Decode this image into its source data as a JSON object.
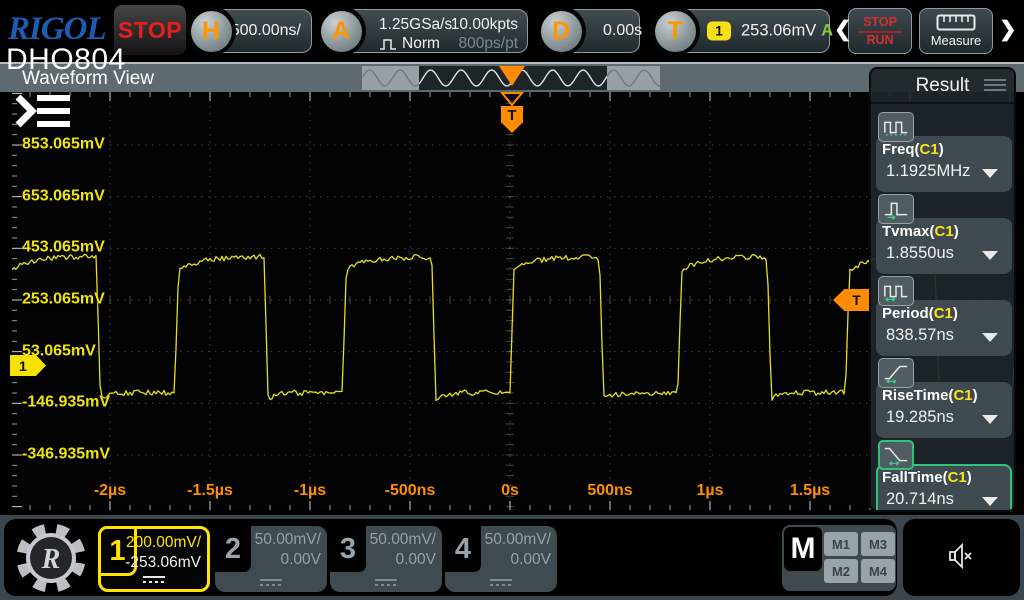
{
  "toolbar": {
    "brand": "RIGOL",
    "model": "DHO804",
    "acq_status": "STOP",
    "horizontal": {
      "key": "H",
      "scale": "500.00ns/"
    },
    "acquire": {
      "key": "A",
      "sample_rate": "1.25GSa/s",
      "mode": "Norm",
      "depth": "10.00kpts",
      "resolution": "800ps/pt"
    },
    "delay": {
      "key": "D",
      "value": "0.00s"
    },
    "trigger": {
      "key": "T",
      "source": "1",
      "level": "253.06mV",
      "state": "A"
    },
    "stop_run": {
      "top": "STOP",
      "bottom": "RUN"
    },
    "measure_label": "Measure",
    "nav_prev": "❮",
    "nav_next": "❯"
  },
  "view": {
    "tab": "Waveform View"
  },
  "plot": {
    "voltage_labels": [
      "853.065mV",
      "653.065mV",
      "453.065mV",
      "253.065mV",
      "53.065mV",
      "-146.935mV",
      "-346.935mV"
    ],
    "time_labels": [
      "-2µs",
      "-1.5µs",
      "-1µs",
      "-500ns",
      "0s",
      "500ns",
      "1µs",
      "1.5µs"
    ],
    "channel_marker": "1",
    "trigger_marker": "T",
    "trigger_top_marker": "T"
  },
  "chart_data": {
    "type": "line",
    "waveform_shape": "square",
    "source": "C1",
    "time_per_div": "500.00ns",
    "volts_per_div": "200.00mV",
    "period_ns": 838.57,
    "freq_MHz": 1.1925,
    "high_mV": 420,
    "low_mV": -105,
    "duty": 0.51,
    "rise_time_ns": 19.285,
    "fall_time_ns": 20.714,
    "trigger_level_mV": 253.06,
    "x_axis": {
      "ticks": [
        "-2µs",
        "-1.5µs",
        "-1µs",
        "-500ns",
        "0s",
        "500ns",
        "1µs",
        "1.5µs"
      ],
      "trigger_at": "0s"
    },
    "y_axis": {
      "ticks_mV": [
        853.065,
        653.065,
        453.065,
        253.065,
        53.065,
        -146.935,
        -346.935
      ]
    }
  },
  "results": {
    "title": "Result",
    "paren_open": "(",
    "paren_close": ")",
    "items": [
      {
        "name": "Freq",
        "source": "C1",
        "value": "1.1925MHz",
        "icon": "freq-icon",
        "selected": false
      },
      {
        "name": "Tvmax",
        "source": "C1",
        "value": "1.8550us",
        "icon": "tvmax-icon",
        "selected": false
      },
      {
        "name": "Period",
        "source": "C1",
        "value": "838.57ns",
        "icon": "period-icon",
        "selected": false
      },
      {
        "name": "RiseTime",
        "source": "C1",
        "value": "19.285ns",
        "icon": "risetime-icon",
        "selected": false
      },
      {
        "name": "FallTime",
        "source": "C1",
        "value": "20.714ns",
        "icon": "falltime-icon",
        "selected": true
      }
    ]
  },
  "bottom_bar": {
    "channels": [
      {
        "num": "1",
        "scale": "200.00mV/",
        "offset": "-253.06mV",
        "active": true
      },
      {
        "num": "2",
        "scale": "50.00mV/",
        "offset": "0.00V",
        "active": false
      },
      {
        "num": "3",
        "scale": "50.00mV/",
        "offset": "0.00V",
        "active": false
      },
      {
        "num": "4",
        "scale": "50.00mV/",
        "offset": "0.00V",
        "active": false
      }
    ],
    "math": {
      "key": "M",
      "buttons": [
        "M1",
        "M3",
        "M2",
        "M4"
      ]
    }
  },
  "colors": {
    "channel1": "#f5e200",
    "trigger_orange": "#ff8c00",
    "key_orange": "#ff9500",
    "time_axis": "#ff8f00",
    "stop_red": "#e81e1e",
    "trig_state_green": "#8dc63f",
    "selected_green": "#2fc47c",
    "waveform": "#e5e01c"
  }
}
